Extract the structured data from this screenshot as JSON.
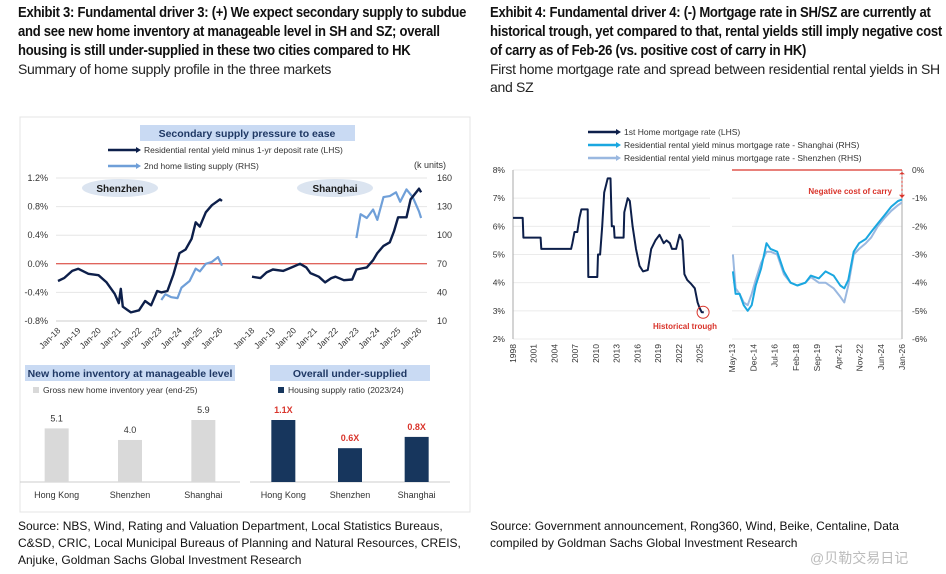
{
  "left": {
    "title": "Exhibit 3: Fundamental driver 3: (+) We expect secondary supply to subdue and see new home inventory at manageable level in SH and SZ; overall housing is still under-supplied in these two cities compared to HK",
    "subtitle": "Summary of home supply profile in the three markets",
    "source": "Source: NBS, Wind, Rating and Valuation Department, Local Statistics Bureaus, C&SD, CRIC, Local Municipal Bureaus of Planning and Natural Resources, CREIS, Anjuke, Goldman Sachs Global Investment Research"
  },
  "right": {
    "title": "Exhibit 4: Fundamental driver 4: (-) Mortgage rate in SH/SZ are currently at historical trough, yet compared to that, rental yields still imply negative cost of carry as of Feb-26 (vs. positive cost of carry in HK)",
    "subtitle": "First home mortgage rate and spread between residential rental yields in SH and SZ",
    "source": "Source: Government announcement, Rong360, Wind, Beike, Centaline, Data compiled by Goldman Sachs Global Investment Research"
  },
  "watermark": "@贝勒交易日记",
  "colors": {
    "navy": "#0d1f4a",
    "lightblue": "#6f9fd8",
    "cyan": "#1aa7e0",
    "paleblue": "#9ab8e0",
    "red": "#d9342b",
    "grey": "#d9d9d9",
    "barnavy": "#17365d",
    "titlebox": "#c9daf3"
  },
  "chart_data": [
    {
      "type": "line",
      "title": "Secondary supply pressure to ease",
      "legend": [
        "Residential rental yield minus 1-yr deposit rate (LHS)",
        "2nd home listing supply (RHS)"
      ],
      "y2label": "(k units)",
      "ylim": [
        -0.8,
        1.2
      ],
      "yticks": [
        "1.2%",
        "0.8%",
        "0.4%",
        "0.0%",
        "-0.4%",
        "-0.8%"
      ],
      "y2lim": [
        10,
        160
      ],
      "y2ticks": [
        "160",
        "130",
        "100",
        "70",
        "40",
        "10"
      ],
      "xticks": [
        "Jan-18",
        "Jan-19",
        "Jan-20",
        "Jan-21",
        "Jan-22",
        "Jan-23",
        "Jan-24",
        "Jan-25",
        "Jan-26"
      ],
      "panels": [
        {
          "name": "Shenzhen",
          "yield": [
            [
              2018.0,
              -0.24
            ],
            [
              2018.3,
              -0.2
            ],
            [
              2018.7,
              -0.1
            ],
            [
              2019.0,
              -0.07
            ],
            [
              2019.5,
              -0.14
            ],
            [
              2020.0,
              -0.16
            ],
            [
              2020.4,
              -0.26
            ],
            [
              2020.8,
              -0.42
            ],
            [
              2021.0,
              -0.55
            ],
            [
              2021.1,
              -0.35
            ],
            [
              2021.2,
              -0.6
            ],
            [
              2021.6,
              -0.68
            ],
            [
              2022.0,
              -0.65
            ],
            [
              2022.3,
              -0.52
            ],
            [
              2022.6,
              -0.58
            ],
            [
              2022.9,
              -0.38
            ],
            [
              2023.1,
              -0.4
            ],
            [
              2023.4,
              -0.38
            ],
            [
              2023.7,
              -0.15
            ],
            [
              2024.0,
              0.15
            ],
            [
              2024.3,
              0.2
            ],
            [
              2024.6,
              0.35
            ],
            [
              2024.8,
              0.58
            ],
            [
              2025.0,
              0.52
            ],
            [
              2025.3,
              0.72
            ],
            [
              2025.6,
              0.82
            ],
            [
              2026.0,
              0.9
            ],
            [
              2026.1,
              0.88
            ]
          ],
          "supply": [
            [
              2023.1,
              32
            ],
            [
              2023.3,
              38
            ],
            [
              2023.6,
              35
            ],
            [
              2023.9,
              34
            ],
            [
              2024.1,
              45
            ],
            [
              2024.5,
              52
            ],
            [
              2024.8,
              65
            ],
            [
              2025.0,
              62
            ],
            [
              2025.3,
              70
            ],
            [
              2025.6,
              72
            ],
            [
              2025.9,
              77
            ],
            [
              2026.1,
              68
            ]
          ]
        },
        {
          "name": "Shanghai",
          "yield": [
            [
              2018.0,
              -0.18
            ],
            [
              2018.4,
              -0.2
            ],
            [
              2018.7,
              -0.12
            ],
            [
              2019.0,
              -0.08
            ],
            [
              2019.5,
              -0.1
            ],
            [
              2019.9,
              -0.05
            ],
            [
              2020.3,
              0.0
            ],
            [
              2020.6,
              -0.05
            ],
            [
              2020.8,
              -0.13
            ],
            [
              2021.2,
              -0.18
            ],
            [
              2021.5,
              -0.26
            ],
            [
              2021.8,
              -0.2
            ],
            [
              2022.0,
              -0.18
            ],
            [
              2022.4,
              -0.23
            ],
            [
              2022.8,
              -0.22
            ],
            [
              2023.0,
              -0.08
            ],
            [
              2023.5,
              -0.05
            ],
            [
              2023.8,
              0.05
            ],
            [
              2024.0,
              0.15
            ],
            [
              2024.3,
              0.25
            ],
            [
              2024.6,
              0.3
            ],
            [
              2024.8,
              0.45
            ],
            [
              2025.0,
              0.65
            ],
            [
              2025.4,
              0.65
            ],
            [
              2025.6,
              0.9
            ],
            [
              2026.0,
              1.05
            ],
            [
              2026.1,
              1.0
            ]
          ],
          "supply": [
            [
              2023.0,
              97
            ],
            [
              2023.2,
              122
            ],
            [
              2023.5,
              118
            ],
            [
              2023.8,
              127
            ],
            [
              2024.0,
              116
            ],
            [
              2024.3,
              140
            ],
            [
              2024.6,
              141
            ],
            [
              2024.9,
              145
            ],
            [
              2025.1,
              135
            ],
            [
              2025.4,
              148
            ],
            [
              2025.7,
              140
            ],
            [
              2026.0,
              125
            ],
            [
              2026.1,
              118
            ]
          ]
        }
      ]
    },
    {
      "type": "bar",
      "title": "New home inventory at manageable level",
      "legend": "Gross new home inventory year (end-25)",
      "categories": [
        "Hong Kong",
        "Shenzhen",
        "Shanghai"
      ],
      "values": [
        5.1,
        4.0,
        5.9
      ],
      "labels": [
        "5.1",
        "4.0",
        "5.9"
      ]
    },
    {
      "type": "bar",
      "title": "Overall under-supplied",
      "legend": "Housing supply ratio (2023/24)",
      "categories": [
        "Hong Kong",
        "Shenzhen",
        "Shanghai"
      ],
      "values": [
        1.1,
        0.6,
        0.8
      ],
      "labels": [
        "1.1X",
        "0.6X",
        "0.8X"
      ]
    },
    {
      "type": "line",
      "legend": [
        "1st Home mortgage rate (LHS)",
        "Residential rental yield minus mortgage rate - Shanghai (RHS)",
        "Residential rental yield minus mortgage rate - Shenzhen (RHS)"
      ],
      "left_panel": {
        "ylim": [
          2,
          8
        ],
        "yticks": [
          "8%",
          "7%",
          "6%",
          "5%",
          "4%",
          "3%",
          "2%"
        ],
        "xlim": [
          1998,
          2026.5
        ],
        "xticks": [
          "1998",
          "2001",
          "2004",
          "2007",
          "2010",
          "2013",
          "2016",
          "2019",
          "2022",
          "2025"
        ],
        "annotation": "Historical trough",
        "mortgage_rate": [
          [
            1998,
            6.3
          ],
          [
            1999.4,
            6.3
          ],
          [
            1999.5,
            5.6
          ],
          [
            2002.0,
            5.6
          ],
          [
            2002.1,
            5.2
          ],
          [
            2006.4,
            5.2
          ],
          [
            2006.6,
            5.4
          ],
          [
            2006.9,
            5.8
          ],
          [
            2007.3,
            5.8
          ],
          [
            2007.6,
            6.3
          ],
          [
            2007.9,
            6.6
          ],
          [
            2008.8,
            6.6
          ],
          [
            2008.9,
            4.2
          ],
          [
            2010.2,
            4.2
          ],
          [
            2010.3,
            5.0
          ],
          [
            2010.6,
            5.0
          ],
          [
            2010.9,
            6.0
          ],
          [
            2011.2,
            7.2
          ],
          [
            2011.5,
            7.5
          ],
          [
            2011.7,
            7.7
          ],
          [
            2012.1,
            7.7
          ],
          [
            2012.3,
            6.0
          ],
          [
            2012.6,
            6.0
          ],
          [
            2012.7,
            5.6
          ],
          [
            2014.0,
            5.6
          ],
          [
            2014.1,
            6.5
          ],
          [
            2014.6,
            7.0
          ],
          [
            2014.9,
            6.9
          ],
          [
            2015.3,
            6.0
          ],
          [
            2015.8,
            5.2
          ],
          [
            2016.3,
            4.6
          ],
          [
            2016.8,
            4.4
          ],
          [
            2017.5,
            4.45
          ],
          [
            2018.0,
            5.2
          ],
          [
            2018.6,
            5.5
          ],
          [
            2019.2,
            5.7
          ],
          [
            2019.8,
            5.4
          ],
          [
            2020.2,
            5.5
          ],
          [
            2020.7,
            5.4
          ],
          [
            2021.0,
            5.2
          ],
          [
            2021.6,
            5.2
          ],
          [
            2022.1,
            5.7
          ],
          [
            2022.5,
            5.5
          ],
          [
            2022.8,
            4.3
          ],
          [
            2023.2,
            4.1
          ],
          [
            2023.8,
            3.95
          ],
          [
            2024.3,
            3.8
          ],
          [
            2024.7,
            3.3
          ],
          [
            2025.0,
            3.1
          ],
          [
            2025.3,
            2.95
          ],
          [
            2025.6,
            2.95
          ]
        ]
      },
      "right_panel": {
        "ylim": [
          -6,
          0
        ],
        "yticks": [
          "0%",
          "-1%",
          "-2%",
          "-3%",
          "-4%",
          "-5%",
          "-6%"
        ],
        "xlim": [
          2013.33,
          2026.0
        ],
        "xticks": [
          "May-13",
          "Dec-14",
          "Jul-16",
          "Feb-18",
          "Sep-19",
          "Apr-21",
          "Nov-22",
          "Jun-24",
          "Jan-26"
        ],
        "annotation": "Negative cost of carry",
        "shanghai": [
          [
            2013.4,
            -3.6
          ],
          [
            2013.6,
            -4.4
          ],
          [
            2013.9,
            -4.4
          ],
          [
            2014.2,
            -4.8
          ],
          [
            2014.5,
            -5.0
          ],
          [
            2014.8,
            -4.8
          ],
          [
            2015.1,
            -4.1
          ],
          [
            2015.5,
            -3.5
          ],
          [
            2015.9,
            -2.6
          ],
          [
            2016.2,
            -2.8
          ],
          [
            2016.7,
            -2.9
          ],
          [
            2017.2,
            -3.6
          ],
          [
            2017.7,
            -4.0
          ],
          [
            2018.2,
            -4.1
          ],
          [
            2018.8,
            -4.0
          ],
          [
            2019.2,
            -3.75
          ],
          [
            2019.8,
            -3.85
          ],
          [
            2020.3,
            -3.6
          ],
          [
            2020.9,
            -3.75
          ],
          [
            2021.4,
            -4.1
          ],
          [
            2021.7,
            -4.2
          ],
          [
            2022.0,
            -3.9
          ],
          [
            2022.4,
            -2.9
          ],
          [
            2022.8,
            -2.6
          ],
          [
            2023.3,
            -2.45
          ],
          [
            2023.7,
            -2.2
          ],
          [
            2024.2,
            -1.9
          ],
          [
            2024.7,
            -1.6
          ],
          [
            2025.2,
            -1.3
          ],
          [
            2025.7,
            -1.1
          ],
          [
            2026.0,
            -1.05
          ]
        ],
        "shenzhen": [
          [
            2013.4,
            -3.0
          ],
          [
            2013.6,
            -4.2
          ],
          [
            2013.9,
            -4.4
          ],
          [
            2014.2,
            -4.7
          ],
          [
            2014.5,
            -4.8
          ],
          [
            2014.8,
            -4.4
          ],
          [
            2015.1,
            -3.9
          ],
          [
            2015.5,
            -3.3
          ],
          [
            2015.9,
            -2.9
          ],
          [
            2016.2,
            -2.9
          ],
          [
            2016.7,
            -3.0
          ],
          [
            2017.2,
            -3.7
          ],
          [
            2017.7,
            -4.0
          ],
          [
            2018.2,
            -4.1
          ],
          [
            2018.8,
            -4.0
          ],
          [
            2019.2,
            -3.8
          ],
          [
            2019.8,
            -4.0
          ],
          [
            2020.3,
            -4.0
          ],
          [
            2020.9,
            -4.2
          ],
          [
            2021.4,
            -4.5
          ],
          [
            2021.7,
            -4.7
          ],
          [
            2022.0,
            -4.1
          ],
          [
            2022.4,
            -3.0
          ],
          [
            2022.8,
            -2.8
          ],
          [
            2023.3,
            -2.6
          ],
          [
            2023.7,
            -2.4
          ],
          [
            2024.2,
            -2.0
          ],
          [
            2024.7,
            -1.7
          ],
          [
            2025.2,
            -1.45
          ],
          [
            2025.7,
            -1.25
          ],
          [
            2026.0,
            -1.15
          ]
        ]
      }
    }
  ]
}
